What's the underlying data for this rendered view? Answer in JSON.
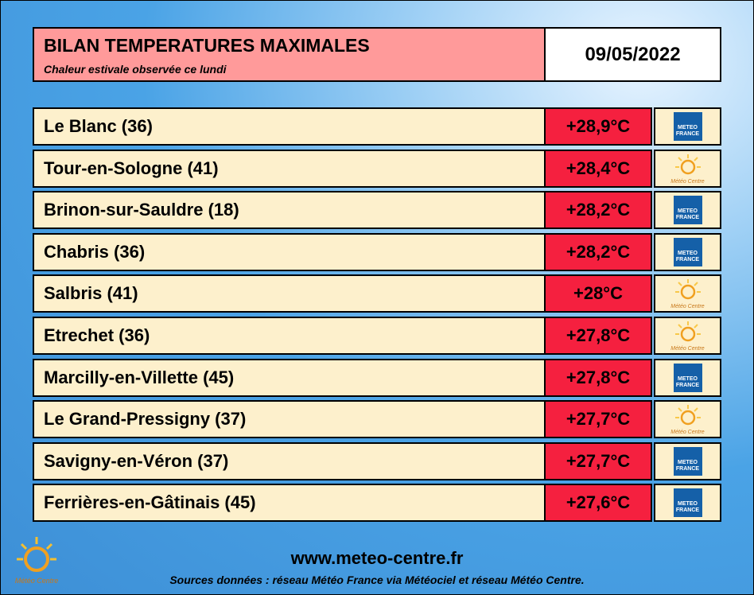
{
  "header": {
    "title": "BILAN TEMPERATURES MAXIMALES",
    "subtitle": "Chaleur estivale observée ce lundi",
    "date": "09/05/2022"
  },
  "rows": [
    {
      "station": "Le Blanc (36)",
      "temperature": "+28,9°C",
      "logo": {
        "text": "METEO FRANCE",
        "kind": "square"
      }
    },
    {
      "station": "Tour-en-Sologne (41)",
      "temperature": "+28,4°C",
      "logo": {
        "text": "Météo Centre",
        "kind": "sun"
      }
    },
    {
      "station": "Brinon-sur-Sauldre (18)",
      "temperature": "+28,2°C",
      "logo": {
        "text": "METEO FRANCE",
        "kind": "square"
      }
    },
    {
      "station": "Chabris (36)",
      "temperature": "+28,2°C",
      "logo": {
        "text": "METEO FRANCE",
        "kind": "square"
      }
    },
    {
      "station": "Salbris (41)",
      "temperature": "+28°C",
      "logo": {
        "text": "Météo Centre",
        "kind": "sun"
      }
    },
    {
      "station": "Etrechet (36)",
      "temperature": "+27,8°C",
      "logo": {
        "text": "Météo Centre",
        "kind": "sun"
      }
    },
    {
      "station": "Marcilly-en-Villette (45)",
      "temperature": "+27,8°C",
      "logo": {
        "text": "METEO FRANCE",
        "kind": "square"
      }
    },
    {
      "station": "Le Grand-Pressigny (37)",
      "temperature": "+27,7°C",
      "logo": {
        "text": "Météo Centre",
        "kind": "sun"
      }
    },
    {
      "station": "Savigny-en-Véron (37)",
      "temperature": "+27,7°C",
      "logo": {
        "text": "METEO FRANCE",
        "kind": "square"
      }
    },
    {
      "station": "Ferrières-en-Gâtinais (45)",
      "temperature": "+27,6°C",
      "logo": {
        "text": "METEO FRANCE",
        "kind": "square"
      }
    }
  ],
  "footer": {
    "url": "www.meteo-centre.fr",
    "sources": "Sources données : réseau Météo France via Météociel et réseau Météo Centre.",
    "logo": "Météo Centre"
  }
}
